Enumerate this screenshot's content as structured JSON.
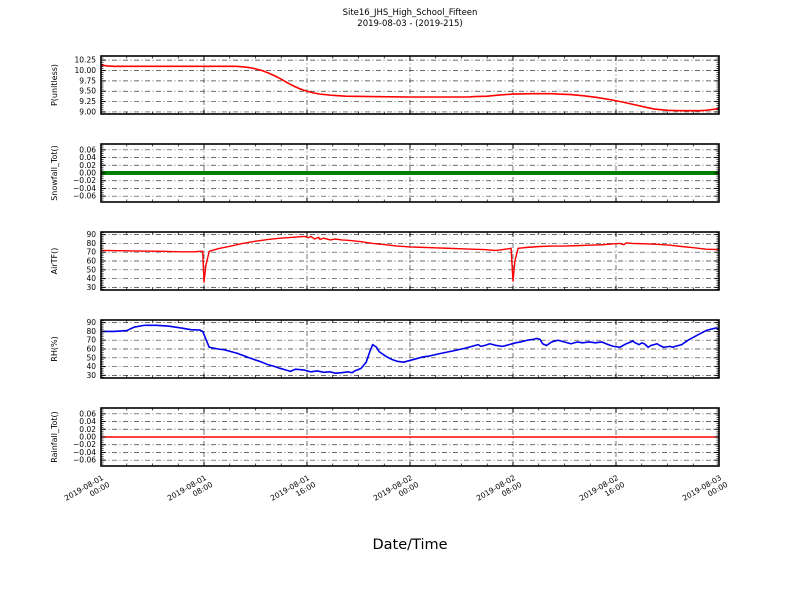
{
  "figure": {
    "title_line1": "Site16_JHS_High_School_Fifteen",
    "title_line2": "2019-08-03 - (2019-215)",
    "xlabel": "Date/Time",
    "background": "#ffffff",
    "grid_color": "#3a3a3a",
    "grid_style": "dash-dot",
    "spine_color": "#000000"
  },
  "x_axis": {
    "xlim_hours": [
      0,
      48
    ],
    "minor_step_hours": 2,
    "tick_rotation_deg": 30,
    "ticks": [
      {
        "hour": 0,
        "date": "2019-08-01",
        "time": "00:00"
      },
      {
        "hour": 8,
        "date": "2019-08-01",
        "time": "08:00"
      },
      {
        "hour": 16,
        "date": "2019-08-01",
        "time": "16:00"
      },
      {
        "hour": 24,
        "date": "2019-08-02",
        "time": "00:00"
      },
      {
        "hour": 32,
        "date": "2019-08-02",
        "time": "08:00"
      },
      {
        "hour": 40,
        "date": "2019-08-02",
        "time": "16:00"
      },
      {
        "hour": 48,
        "date": "2019-08-03",
        "time": "00:00"
      }
    ]
  },
  "chart_data": [
    {
      "type": "line",
      "id": "p-unitless",
      "ylabel": "P(unitless)",
      "color": "#ff0000",
      "linewidth": 1.6,
      "ylim": [
        8.95,
        10.35
      ],
      "ytick_values": [
        10.25,
        10.0,
        9.75,
        9.5,
        9.25,
        9.0
      ],
      "ytick_labels": [
        "10.25",
        "10.00",
        "9.75",
        "9.50",
        "9.25",
        "9.00"
      ],
      "y_minor_step": 0.05,
      "x": [
        0,
        0.5,
        1,
        10.5,
        11,
        11.5,
        12,
        12.5,
        13,
        13.5,
        14,
        14.5,
        15,
        15.5,
        16,
        16.5,
        17,
        18,
        19,
        21,
        24,
        27,
        28.5,
        29,
        30,
        31,
        32,
        33.5,
        35,
        35.5,
        36.5,
        37.5,
        38.5,
        39.5,
        40.5,
        41.5,
        42.5,
        43,
        44,
        45,
        46.5,
        47,
        47.5,
        48
      ],
      "y": [
        10.13,
        10.11,
        10.1,
        10.1,
        10.09,
        10.07,
        10.04,
        10.0,
        9.94,
        9.87,
        9.79,
        9.7,
        9.62,
        9.55,
        9.5,
        9.46,
        9.43,
        9.4,
        9.38,
        9.37,
        9.36,
        9.36,
        9.36,
        9.37,
        9.38,
        9.41,
        9.43,
        9.44,
        9.44,
        9.43,
        9.42,
        9.39,
        9.35,
        9.3,
        9.24,
        9.17,
        9.1,
        9.07,
        9.04,
        9.03,
        9.03,
        9.04,
        9.06,
        9.08
      ]
    },
    {
      "type": "line",
      "id": "snowfall",
      "ylabel": "Snowfall_Tot()",
      "color": "#008000",
      "linewidth": 4,
      "ylim": [
        -0.075,
        0.075
      ],
      "ytick_values": [
        0.06,
        0.04,
        0.02,
        0.0,
        -0.02,
        -0.04,
        -0.06
      ],
      "ytick_labels": [
        "0.06",
        "0.04",
        "0.02",
        "0.00",
        "−0.02",
        "−0.04",
        "−0.06"
      ],
      "y_minor_step": 0.005,
      "x": [
        0,
        48
      ],
      "y": [
        0,
        0
      ]
    },
    {
      "type": "line",
      "id": "airtf",
      "ylabel": "AirTF()",
      "color": "#ff0000",
      "linewidth": 1.4,
      "ylim": [
        27,
        93
      ],
      "ytick_values": [
        90,
        80,
        70,
        60,
        50,
        40,
        30
      ],
      "ytick_labels": [
        "90",
        "80",
        "70",
        "60",
        "50",
        "40",
        "30"
      ],
      "y_minor_step": 2,
      "x": [
        0,
        2.4,
        4.8,
        6.2,
        7.2,
        7.7,
        7.9,
        8.0,
        8.15,
        8.4,
        9.1,
        10.1,
        11.0,
        12.0,
        13.0,
        13.9,
        14.9,
        15.4,
        15.8,
        16.1,
        16.3,
        16.6,
        16.9,
        17.0,
        17.3,
        17.8,
        18.2,
        18.7,
        19.2,
        20.2,
        21.1,
        22.1,
        23.0,
        24.0,
        25.0,
        25.9,
        26.9,
        27.8,
        28.8,
        29.8,
        30.2,
        30.7,
        31.2,
        31.7,
        31.85,
        32.0,
        32.15,
        32.4,
        33.1,
        34.1,
        35.0,
        36.0,
        37.0,
        37.9,
        38.9,
        39.8,
        40.3,
        40.6,
        40.8,
        41.3,
        42.2,
        43.2,
        44.2,
        45.1,
        46.1,
        47.0,
        48.0
      ],
      "y": [
        72,
        71.5,
        71,
        70.5,
        70.5,
        71,
        71,
        36,
        55,
        71,
        74,
        77,
        80,
        82.5,
        84.5,
        86,
        87,
        87.5,
        88,
        86.5,
        88,
        85,
        87,
        84.5,
        86,
        84,
        85,
        84,
        83.5,
        82,
        80,
        78.5,
        77,
        76,
        75.5,
        75,
        74.5,
        74,
        73.5,
        73,
        72.5,
        72,
        73,
        74,
        74.5,
        37,
        60,
        74.5,
        75.5,
        76.5,
        77,
        77,
        77.5,
        78,
        78.5,
        79.5,
        80,
        78.5,
        80.5,
        80,
        79.5,
        79,
        78,
        76.5,
        75,
        73.5,
        73
      ]
    },
    {
      "type": "line",
      "id": "rh",
      "ylabel": "RH(%)",
      "color": "#0000ee",
      "linewidth": 1.6,
      "ylim": [
        27,
        93
      ],
      "ytick_values": [
        90,
        80,
        70,
        60,
        50,
        40,
        30
      ],
      "ytick_labels": [
        "90",
        "80",
        "70",
        "60",
        "50",
        "40",
        "30"
      ],
      "y_minor_step": 2,
      "x": [
        0,
        1,
        2,
        2.6,
        3.4,
        4.3,
        5.3,
        6.2,
        7,
        7.7,
        7.9,
        8.4,
        9.1,
        9.6,
        10.6,
        11.5,
        12.5,
        13,
        13.4,
        13.9,
        14.4,
        14.7,
        15.1,
        15.8,
        16.3,
        16.8,
        17.3,
        17.8,
        18.2,
        18.7,
        19.2,
        19.5,
        19.7,
        20.2,
        20.6,
        20.9,
        21.1,
        21.4,
        21.6,
        22.1,
        22.6,
        23,
        23.5,
        24,
        24.5,
        25,
        25.5,
        26.4,
        27.4,
        28.3,
        28.8,
        29.3,
        29.5,
        29.8,
        30.2,
        30.7,
        31.2,
        31.7,
        32.2,
        32.6,
        33.1,
        33.6,
        33.8,
        34.1,
        34.3,
        34.6,
        35,
        35.5,
        36,
        36.5,
        37,
        37.4,
        37.9,
        38.4,
        38.9,
        39.4,
        39.8,
        40.3,
        40.8,
        41.3,
        41.5,
        41.8,
        42,
        42.2,
        42.5,
        42.7,
        43.2,
        43.4,
        43.7,
        44.2,
        44.4,
        44.6,
        45.1,
        45.6,
        46.1,
        46.6,
        47,
        47.5,
        47.8,
        48
      ],
      "y": [
        80,
        80,
        81,
        85,
        87,
        87,
        86,
        84,
        82,
        81.5,
        80,
        62,
        60,
        59,
        55,
        50,
        45,
        42,
        40.5,
        38,
        36,
        34.5,
        37,
        36,
        34,
        35,
        33.5,
        34,
        32.5,
        33,
        34,
        33,
        35,
        38,
        45,
        58,
        65,
        62,
        57,
        52,
        48,
        46,
        45,
        47,
        49,
        51,
        52,
        55,
        58,
        61,
        63,
        65,
        63,
        64,
        66,
        64,
        63,
        65,
        67,
        68,
        70,
        71,
        72,
        71,
        66,
        64,
        68,
        70,
        68,
        66,
        68,
        67,
        68,
        67,
        68,
        65,
        63,
        62,
        66,
        69,
        67,
        65,
        67,
        66,
        62,
        64,
        66,
        64,
        62,
        63,
        62,
        63,
        65,
        70,
        74,
        78,
        81,
        83,
        84,
        82
      ]
    },
    {
      "type": "line",
      "id": "rainfall",
      "ylabel": "Rainfall_Tot()",
      "color": "#ff0000",
      "linewidth": 1.5,
      "ylim": [
        -0.075,
        0.075
      ],
      "ytick_values": [
        0.06,
        0.04,
        0.02,
        0.0,
        -0.02,
        -0.04,
        -0.06
      ],
      "ytick_labels": [
        "0.06",
        "0.04",
        "0.02",
        "0.00",
        "−0.02",
        "−0.04",
        "−0.06"
      ],
      "y_minor_step": 0.005,
      "x": [
        0,
        48
      ],
      "y": [
        0,
        0
      ]
    }
  ]
}
